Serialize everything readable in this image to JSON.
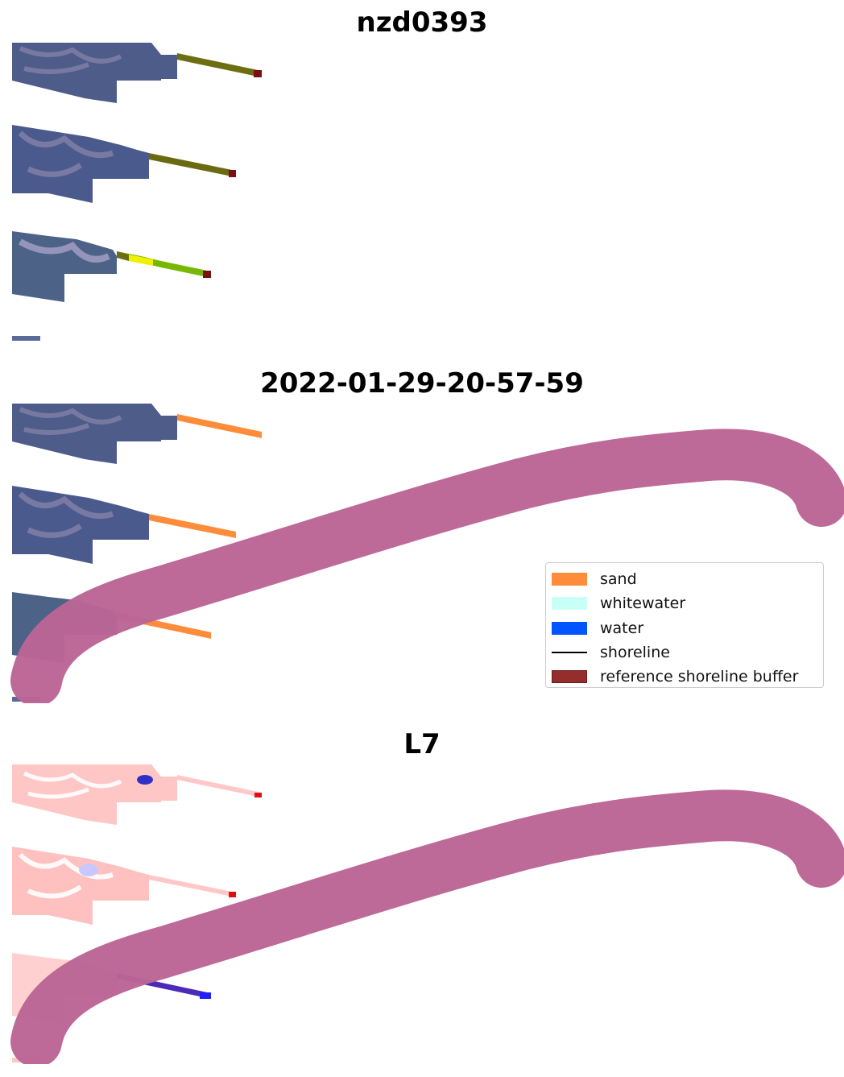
{
  "panels": [
    {
      "title": "nzd0393",
      "kind": "rgb-composite"
    },
    {
      "title": "2022-01-29-20-57-59",
      "kind": "classified"
    },
    {
      "title": "L7",
      "kind": "index"
    }
  ],
  "legend": {
    "items": [
      {
        "label": "sand",
        "color": "#ff8c3a",
        "type": "patch"
      },
      {
        "label": "whitewater",
        "color": "#c8fff6",
        "type": "patch"
      },
      {
        "label": "water",
        "color": "#0055ff",
        "type": "patch"
      },
      {
        "label": "shoreline",
        "color": "#000000",
        "type": "line"
      },
      {
        "label": "reference shoreline buffer",
        "color": "#962d2d",
        "type": "patch"
      }
    ]
  },
  "colors": {
    "land_rgb": "#4a5a86",
    "land_rgb_alt": "#7f7aa3",
    "strip_olive": "#6b6b10",
    "strip_green": "#7fbf00",
    "strip_yellow": "#f0f000",
    "sand": "#ff8c3a",
    "buffer_fill": "#bb6595",
    "index_land": "#ffc6c6",
    "index_strip_blue": "#4030c0"
  }
}
